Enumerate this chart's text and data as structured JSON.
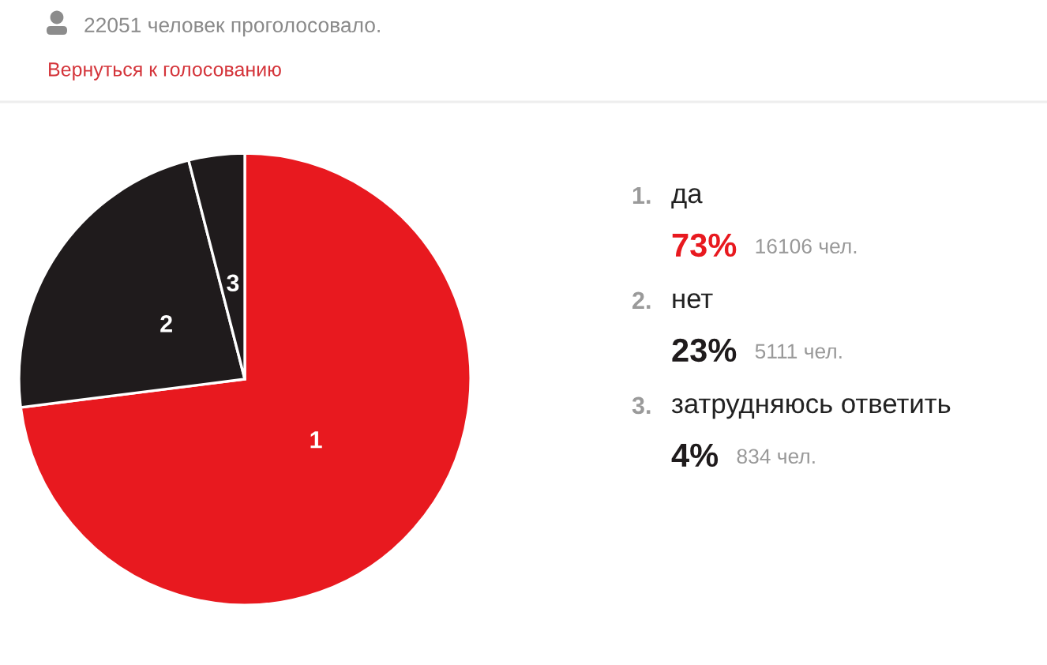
{
  "chart_data": {
    "type": "pie",
    "title": "22051 человек проголосовало.",
    "subtitle": "Вернуться к голосованию",
    "categories": [
      "1",
      "2",
      "3"
    ],
    "values": [
      73,
      23,
      4
    ],
    "colors": [
      "#e8191f",
      "#1f1b1c",
      "#1f1b1c"
    ],
    "annotations": [
      "1.",
      "да",
      "73%",
      "16106 чел.",
      "2.",
      "нет",
      "23%",
      "5111 чел.",
      "3.",
      "затрудняюсь ответить",
      "4%",
      "834 чел."
    ]
  }
}
